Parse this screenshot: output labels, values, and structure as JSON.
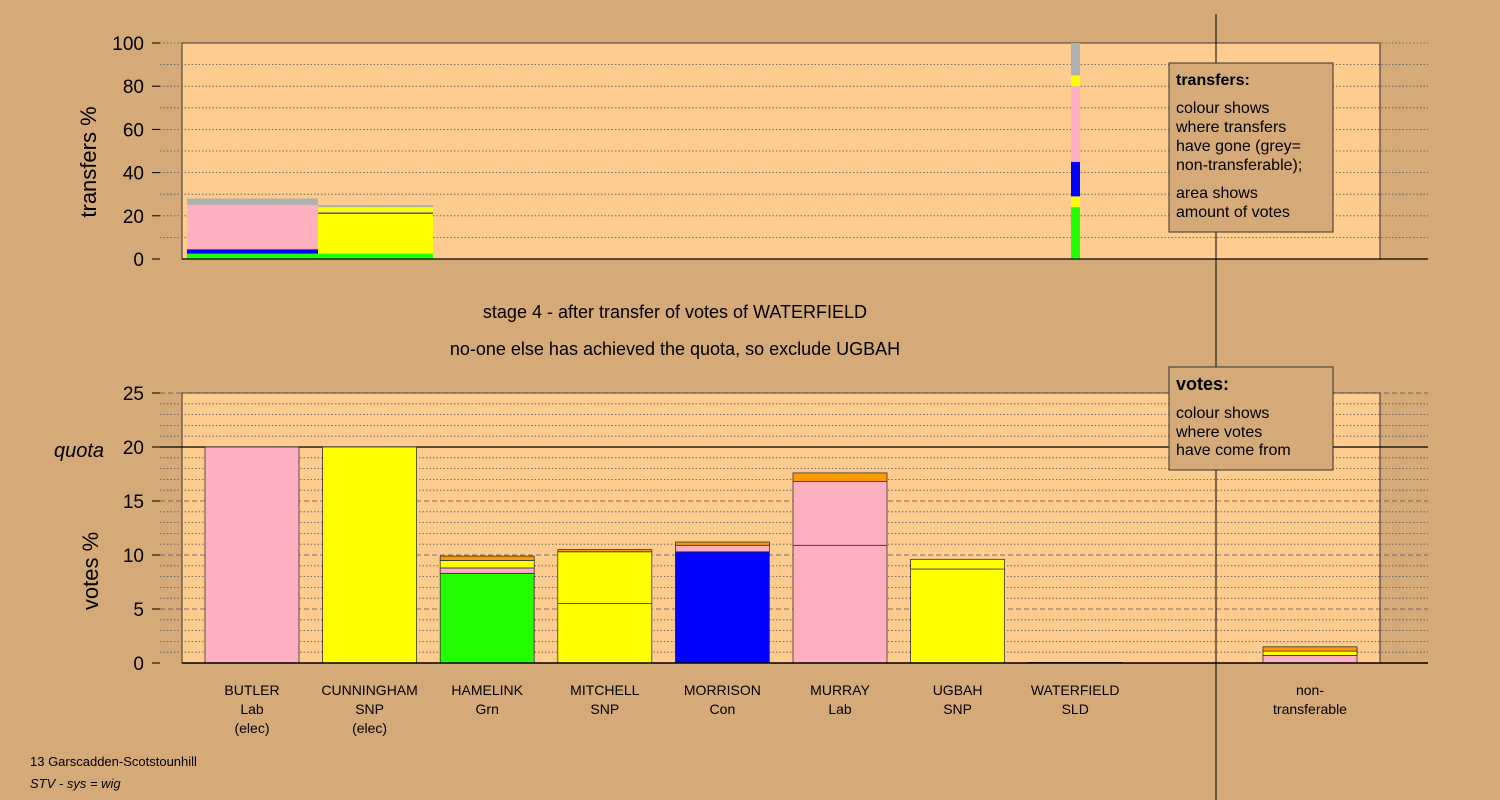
{
  "colors": {
    "background": "#d4aa78",
    "panel": "#ffcc8f",
    "green": "#22ff00",
    "blue": "#0000ff",
    "pink": "#ffb0c0",
    "yellow": "#ffff00",
    "grey": "#b0b0b0",
    "orange": "#ff9900"
  },
  "chart_data": [
    {
      "type": "bar",
      "name": "transfers",
      "ylabel": "transfers %",
      "ylim": [
        0,
        100
      ],
      "yticks": [
        0,
        20,
        40,
        60,
        80,
        100
      ],
      "stacked": true,
      "columns": [
        {
          "segments": [
            {
              "color": "green",
              "value": 2.5
            },
            {
              "color": "blue",
              "value": 2
            },
            {
              "color": "pink",
              "value": 20.5
            },
            {
              "color": "grey",
              "value": 3
            }
          ]
        },
        {
          "segments": [
            {
              "color": "green",
              "value": 2.5
            },
            {
              "color": "yellow",
              "value": 18.5
            },
            {
              "color": "blue",
              "value": 0.5
            },
            {
              "color": "yellow",
              "value": 2.5
            },
            {
              "color": "grey",
              "value": 1
            }
          ]
        },
        {
          "segments": [
            {
              "color": "green",
              "value": 24
            },
            {
              "color": "yellow",
              "value": 5
            },
            {
              "color": "blue",
              "value": 16
            },
            {
              "color": "pink",
              "value": 35
            },
            {
              "color": "yellow",
              "value": 5
            },
            {
              "color": "grey",
              "value": 15
            }
          ]
        }
      ],
      "legend": {
        "title": "transfers:",
        "line1": "colour shows",
        "line2": "where transfers",
        "line3": "have gone (grey=",
        "line4": "non-transferable);",
        "line5": "area shows",
        "line6": "amount of votes"
      }
    },
    {
      "type": "bar",
      "name": "votes",
      "ylabel": "votes %",
      "ylim": [
        0,
        25
      ],
      "yticks": [
        0,
        5,
        10,
        15,
        20,
        25
      ],
      "quota": 20,
      "quota_label": "quota",
      "stacked": true,
      "candidates": [
        {
          "name": "BUTLER",
          "party": "Lab",
          "status": "(elec)",
          "segments": [
            {
              "color": "pink",
              "value": 20
            }
          ]
        },
        {
          "name": "CUNNINGHAM",
          "party": "SNP",
          "status": "(elec)",
          "segments": [
            {
              "color": "yellow",
              "value": 20
            }
          ]
        },
        {
          "name": "HAMELINK",
          "party": "Grn",
          "status": "",
          "segments": [
            {
              "color": "green",
              "value": 8.3
            },
            {
              "color": "pink",
              "value": 0.5
            },
            {
              "color": "yellow",
              "value": 0.7
            },
            {
              "color": "orange",
              "value": 0.4
            }
          ]
        },
        {
          "name": "MITCHELL",
          "party": "SNP",
          "status": "",
          "segments": [
            {
              "color": "yellow",
              "value": 5.5
            },
            {
              "color": "yellow",
              "value": 4.8
            },
            {
              "color": "orange",
              "value": 0.2
            }
          ]
        },
        {
          "name": "MORRISON",
          "party": "Con",
          "status": "",
          "segments": [
            {
              "color": "blue",
              "value": 10.3
            },
            {
              "color": "pink",
              "value": 0.6
            },
            {
              "color": "orange",
              "value": 0.3
            }
          ]
        },
        {
          "name": "MURRAY",
          "party": "Lab",
          "status": "",
          "segments": [
            {
              "color": "pink",
              "value": 10.9
            },
            {
              "color": "pink",
              "value": 5.9
            },
            {
              "color": "orange",
              "value": 0.8
            }
          ]
        },
        {
          "name": "UGBAH",
          "party": "SNP",
          "status": "",
          "segments": [
            {
              "color": "yellow",
              "value": 8.7
            },
            {
              "color": "yellow",
              "value": 0.9
            }
          ]
        },
        {
          "name": "WATERFIELD",
          "party": "SLD",
          "status": "",
          "segments": [
            {
              "color": "yellow",
              "value": 0.05
            }
          ]
        }
      ],
      "nontransferable": {
        "label1": "non-",
        "label2": "transferable",
        "segments": [
          {
            "color": "pink",
            "value": 0.7
          },
          {
            "color": "yellow",
            "value": 0.4
          },
          {
            "color": "orange",
            "value": 0.4
          }
        ]
      },
      "legend": {
        "title": "votes:",
        "line1": "colour shows",
        "line2": "where votes",
        "line3": "have come from"
      }
    }
  ],
  "stage_line1": "stage 4 - after transfer of votes of WATERFIELD",
  "stage_line2": "no-one else has achieved the quota, so exclude UGBAH",
  "footer": {
    "constituency": "13 Garscadden-Scotstounhill",
    "system": "STV - sys = wig"
  }
}
